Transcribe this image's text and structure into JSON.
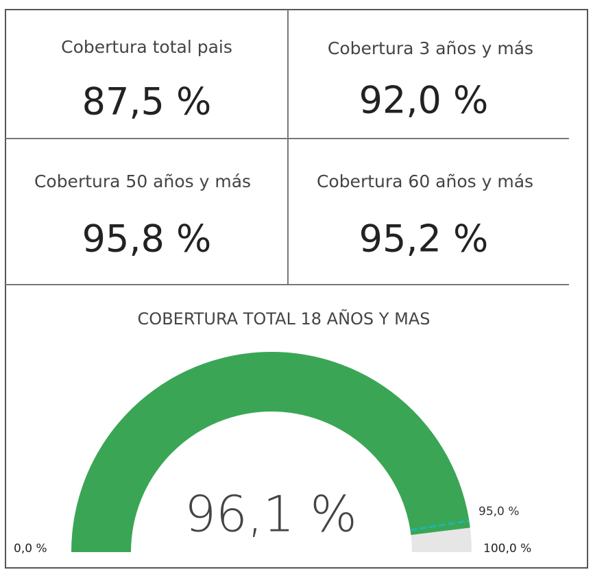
{
  "cards": [
    {
      "title": "Cobertura total pais",
      "value": "87,5 %"
    },
    {
      "title": "Cobertura 3 años y más",
      "value": "92,0 %"
    },
    {
      "title": "Cobertura 50 años y más",
      "value": "95,8 %"
    },
    {
      "title": "Cobertura 60 años y más",
      "value": "95,2 %"
    }
  ],
  "chart_data": {
    "type": "gauge",
    "title": "COBERTURA TOTAL 18 AÑOS Y MAS",
    "value": 96.1,
    "value_label": "96,1 %",
    "min": 0,
    "min_label": "0,0 %",
    "max": 100,
    "max_label": "100,0 %",
    "target": 95,
    "target_label": "95,0 %",
    "color": "#3aa655",
    "track_color": "#e6e6e6",
    "target_color": "#1fb5b0"
  }
}
